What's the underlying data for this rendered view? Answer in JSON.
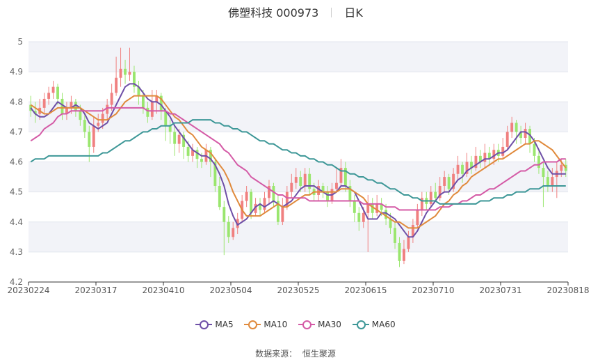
{
  "title": {
    "name": "佛塑科技 000973",
    "period": "日K"
  },
  "source_label": "数据来源：",
  "source_value": "恒生聚源",
  "colors": {
    "up": "#f08080",
    "down": "#9ae66e",
    "MA5": "#6e4fa7",
    "MA10": "#e08a3c",
    "MA30": "#d45aa6",
    "MA60": "#3d9797",
    "grid": "#e3e6ee",
    "band": "#f2f3f8"
  },
  "chart_data": {
    "type": "candlestick",
    "ylim": [
      4.2,
      5.0
    ],
    "y_ticks": [
      "4.2",
      "4.3",
      "4.4",
      "4.5",
      "4.6",
      "4.7",
      "4.8",
      "4.9",
      "5"
    ],
    "x_tick_labels": [
      "20230224",
      "20230317",
      "20230410",
      "20230504",
      "20230525",
      "20230615",
      "20230710",
      "20230731",
      "20230818"
    ],
    "legend": [
      "MA5",
      "MA10",
      "MA30",
      "MA60"
    ],
    "candles": [
      [
        4.79,
        4.77,
        4.82,
        4.75
      ],
      [
        4.77,
        4.76,
        4.8,
        4.73
      ],
      [
        4.76,
        4.78,
        4.81,
        4.74
      ],
      [
        4.78,
        4.81,
        4.83,
        4.76
      ],
      [
        4.81,
        4.83,
        4.85,
        4.79
      ],
      [
        4.83,
        4.85,
        4.87,
        4.81
      ],
      [
        4.85,
        4.81,
        4.86,
        4.79
      ],
      [
        4.81,
        4.76,
        4.83,
        4.74
      ],
      [
        4.76,
        4.78,
        4.8,
        4.74
      ],
      [
        4.78,
        4.8,
        4.82,
        4.76
      ],
      [
        4.8,
        4.77,
        4.81,
        4.75
      ],
      [
        4.77,
        4.74,
        4.79,
        4.72
      ],
      [
        4.74,
        4.7,
        4.76,
        4.68
      ],
      [
        4.7,
        4.65,
        4.72,
        4.6
      ],
      [
        4.65,
        4.72,
        4.75,
        4.63
      ],
      [
        4.72,
        4.73,
        4.76,
        4.7
      ],
      [
        4.73,
        4.76,
        4.78,
        4.71
      ],
      [
        4.76,
        4.79,
        4.81,
        4.74
      ],
      [
        4.79,
        4.83,
        4.86,
        4.77
      ],
      [
        4.83,
        4.88,
        4.95,
        4.82
      ],
      [
        4.88,
        4.91,
        4.98,
        4.85
      ],
      [
        4.91,
        4.89,
        4.94,
        4.86
      ],
      [
        4.89,
        4.9,
        4.98,
        4.87
      ],
      [
        4.9,
        4.85,
        4.92,
        4.83
      ],
      [
        4.85,
        4.82,
        4.87,
        4.79
      ],
      [
        4.82,
        4.78,
        4.84,
        4.76
      ],
      [
        4.78,
        4.75,
        4.8,
        4.73
      ],
      [
        4.75,
        4.8,
        4.84,
        4.74
      ],
      [
        4.8,
        4.82,
        4.84,
        4.76
      ],
      [
        4.82,
        4.77,
        4.83,
        4.74
      ],
      [
        4.77,
        4.72,
        4.78,
        4.67
      ],
      [
        4.72,
        4.7,
        4.74,
        4.66
      ],
      [
        4.7,
        4.66,
        4.72,
        4.62
      ],
      [
        4.66,
        4.69,
        4.71,
        4.63
      ],
      [
        4.69,
        4.65,
        4.7,
        4.61
      ],
      [
        4.65,
        4.62,
        4.67,
        4.6
      ],
      [
        4.62,
        4.64,
        4.66,
        4.6
      ],
      [
        4.64,
        4.61,
        4.65,
        4.58
      ],
      [
        4.61,
        4.6,
        4.63,
        4.58
      ],
      [
        4.6,
        4.64,
        4.66,
        4.59
      ],
      [
        4.64,
        4.6,
        4.65,
        4.55
      ],
      [
        4.6,
        4.52,
        4.61,
        4.5
      ],
      [
        4.52,
        4.45,
        4.55,
        4.44
      ],
      [
        4.45,
        4.4,
        4.47,
        4.29
      ],
      [
        4.4,
        4.35,
        4.42,
        4.33
      ],
      [
        4.35,
        4.38,
        4.4,
        4.34
      ],
      [
        4.38,
        4.41,
        4.43,
        4.36
      ],
      [
        4.41,
        4.47,
        4.49,
        4.4
      ],
      [
        4.47,
        4.5,
        4.52,
        4.45
      ],
      [
        4.5,
        4.43,
        4.51,
        4.41
      ],
      [
        4.43,
        4.46,
        4.48,
        4.42
      ],
      [
        4.46,
        4.44,
        4.48,
        4.42
      ],
      [
        4.44,
        4.48,
        4.5,
        4.43
      ],
      [
        4.48,
        4.52,
        4.54,
        4.46
      ],
      [
        4.52,
        4.47,
        4.53,
        4.45
      ],
      [
        4.47,
        4.4,
        4.49,
        4.39
      ],
      [
        4.4,
        4.45,
        4.48,
        4.39
      ],
      [
        4.45,
        4.5,
        4.52,
        4.44
      ],
      [
        4.5,
        4.53,
        4.56,
        4.48
      ],
      [
        4.53,
        4.55,
        4.58,
        4.51
      ],
      [
        4.55,
        4.52,
        4.57,
        4.5
      ],
      [
        4.52,
        4.56,
        4.58,
        4.5
      ],
      [
        4.56,
        4.51,
        4.58,
        4.49
      ],
      [
        4.51,
        4.49,
        4.53,
        4.47
      ],
      [
        4.49,
        4.52,
        4.54,
        4.47
      ],
      [
        4.52,
        4.5,
        4.53,
        4.48
      ],
      [
        4.5,
        4.47,
        4.52,
        4.45
      ],
      [
        4.47,
        4.51,
        4.53,
        4.46
      ],
      [
        4.51,
        4.53,
        4.58,
        4.5
      ],
      [
        4.53,
        4.58,
        4.61,
        4.52
      ],
      [
        4.58,
        4.52,
        4.6,
        4.5
      ],
      [
        4.52,
        4.47,
        4.54,
        4.45
      ],
      [
        4.47,
        4.43,
        4.49,
        4.4
      ],
      [
        4.43,
        4.4,
        4.45,
        4.37
      ],
      [
        4.4,
        4.43,
        4.45,
        4.38
      ],
      [
        4.43,
        4.46,
        4.49,
        4.3
      ],
      [
        4.46,
        4.43,
        4.48,
        4.41
      ],
      [
        4.43,
        4.46,
        4.49,
        4.42
      ],
      [
        4.46,
        4.44,
        4.48,
        4.42
      ],
      [
        4.44,
        4.41,
        4.46,
        4.39
      ],
      [
        4.41,
        4.38,
        4.43,
        4.36
      ],
      [
        4.38,
        4.33,
        4.4,
        4.31
      ],
      [
        4.33,
        4.27,
        4.35,
        4.25
      ],
      [
        4.27,
        4.31,
        4.34,
        4.26
      ],
      [
        4.31,
        4.35,
        4.37,
        4.3
      ],
      [
        4.35,
        4.39,
        4.41,
        4.33
      ],
      [
        4.39,
        4.44,
        4.46,
        4.38
      ],
      [
        4.44,
        4.48,
        4.5,
        4.42
      ],
      [
        4.48,
        4.46,
        4.5,
        4.44
      ],
      [
        4.46,
        4.5,
        4.52,
        4.45
      ],
      [
        4.5,
        4.48,
        4.53,
        4.47
      ],
      [
        4.48,
        4.52,
        4.55,
        4.47
      ],
      [
        4.52,
        4.55,
        4.57,
        4.5
      ],
      [
        4.55,
        4.51,
        4.56,
        4.49
      ],
      [
        4.51,
        4.56,
        4.58,
        4.5
      ],
      [
        4.56,
        4.59,
        4.62,
        4.54
      ],
      [
        4.59,
        4.56,
        4.6,
        4.53
      ],
      [
        4.56,
        4.6,
        4.63,
        4.55
      ],
      [
        4.6,
        4.58,
        4.62,
        4.56
      ],
      [
        4.58,
        4.62,
        4.65,
        4.57
      ],
      [
        4.62,
        4.6,
        4.64,
        4.58
      ],
      [
        4.6,
        4.63,
        4.66,
        4.58
      ],
      [
        4.63,
        4.61,
        4.65,
        4.59
      ],
      [
        4.61,
        4.64,
        4.66,
        4.59
      ],
      [
        4.64,
        4.62,
        4.66,
        4.6
      ],
      [
        4.62,
        4.65,
        4.68,
        4.61
      ],
      [
        4.65,
        4.7,
        4.72,
        4.64
      ],
      [
        4.7,
        4.73,
        4.75,
        4.68
      ],
      [
        4.73,
        4.7,
        4.74,
        4.66
      ],
      [
        4.7,
        4.68,
        4.72,
        4.66
      ],
      [
        4.68,
        4.71,
        4.73,
        4.66
      ],
      [
        4.71,
        4.66,
        4.72,
        4.63
      ],
      [
        4.66,
        4.62,
        4.68,
        4.6
      ],
      [
        4.62,
        4.58,
        4.64,
        4.56
      ],
      [
        4.58,
        4.55,
        4.6,
        4.45
      ],
      [
        4.55,
        4.52,
        4.57,
        4.5
      ],
      [
        4.52,
        4.55,
        4.58,
        4.5
      ],
      [
        4.55,
        4.57,
        4.6,
        4.48
      ],
      [
        4.57,
        4.59,
        4.61,
        4.55
      ],
      [
        4.59,
        4.57,
        4.61,
        4.55
      ]
    ],
    "series": [
      {
        "name": "MA5",
        "values": [
          4.78,
          4.76,
          4.75,
          4.75,
          4.76,
          4.78,
          4.8,
          4.79,
          4.78,
          4.78,
          4.79,
          4.78,
          4.76,
          4.73,
          4.72,
          4.71,
          4.72,
          4.73,
          4.76,
          4.79,
          4.82,
          4.85,
          4.86,
          4.86,
          4.85,
          4.83,
          4.81,
          4.8,
          4.8,
          4.79,
          4.77,
          4.75,
          4.72,
          4.7,
          4.68,
          4.66,
          4.64,
          4.63,
          4.62,
          4.62,
          4.61,
          4.59,
          4.56,
          4.52,
          4.46,
          4.42,
          4.39,
          4.4,
          4.41,
          4.43,
          4.45,
          4.46,
          4.45,
          4.46,
          4.47,
          4.46,
          4.45,
          4.46,
          4.47,
          4.49,
          4.51,
          4.52,
          4.52,
          4.52,
          4.51,
          4.5,
          4.49,
          4.49,
          4.5,
          4.52,
          4.52,
          4.51,
          4.5,
          4.47,
          4.44,
          4.41,
          4.41,
          4.41,
          4.43,
          4.43,
          4.42,
          4.41,
          4.39,
          4.37,
          4.35,
          4.35,
          4.37,
          4.4,
          4.43,
          4.45,
          4.47,
          4.49,
          4.5,
          4.5,
          4.52,
          4.54,
          4.55,
          4.57,
          4.58,
          4.59,
          4.6,
          4.61,
          4.61,
          4.62,
          4.63,
          4.63,
          4.64,
          4.66,
          4.68,
          4.7,
          4.7,
          4.69,
          4.67,
          4.64,
          4.61,
          4.58,
          4.56,
          4.56,
          4.56,
          4.56
        ]
      },
      {
        "name": "MA10",
        "values": [
          4.79,
          4.78,
          4.77,
          4.76,
          4.76,
          4.77,
          4.78,
          4.78,
          4.78,
          4.78,
          4.78,
          4.78,
          4.77,
          4.76,
          4.75,
          4.74,
          4.74,
          4.74,
          4.75,
          4.76,
          4.78,
          4.8,
          4.81,
          4.82,
          4.82,
          4.82,
          4.82,
          4.82,
          4.82,
          4.81,
          4.79,
          4.77,
          4.75,
          4.74,
          4.72,
          4.7,
          4.69,
          4.67,
          4.65,
          4.64,
          4.63,
          4.61,
          4.59,
          4.57,
          4.54,
          4.5,
          4.47,
          4.44,
          4.42,
          4.42,
          4.42,
          4.42,
          4.43,
          4.44,
          4.45,
          4.46,
          4.45,
          4.45,
          4.46,
          4.47,
          4.48,
          4.49,
          4.49,
          4.5,
          4.5,
          4.5,
          4.5,
          4.5,
          4.5,
          4.51,
          4.51,
          4.51,
          4.5,
          4.49,
          4.48,
          4.46,
          4.45,
          4.44,
          4.43,
          4.42,
          4.41,
          4.4,
          4.4,
          4.39,
          4.38,
          4.38,
          4.38,
          4.39,
          4.4,
          4.41,
          4.42,
          4.44,
          4.46,
          4.47,
          4.49,
          4.5,
          4.52,
          4.53,
          4.55,
          4.56,
          4.57,
          4.58,
          4.59,
          4.6,
          4.61,
          4.61,
          4.62,
          4.63,
          4.64,
          4.65,
          4.66,
          4.66,
          4.67,
          4.67,
          4.66,
          4.65,
          4.64,
          4.62,
          4.6,
          4.58
        ]
      },
      {
        "name": "MA30",
        "values": [
          4.67,
          4.68,
          4.69,
          4.71,
          4.72,
          4.73,
          4.75,
          4.76,
          4.76,
          4.77,
          4.77,
          4.77,
          4.77,
          4.77,
          4.77,
          4.77,
          4.77,
          4.78,
          4.78,
          4.78,
          4.78,
          4.78,
          4.78,
          4.78,
          4.78,
          4.78,
          4.77,
          4.77,
          4.77,
          4.77,
          4.77,
          4.76,
          4.76,
          4.75,
          4.74,
          4.73,
          4.72,
          4.71,
          4.7,
          4.69,
          4.68,
          4.67,
          4.66,
          4.64,
          4.63,
          4.61,
          4.59,
          4.58,
          4.57,
          4.55,
          4.54,
          4.53,
          4.52,
          4.51,
          4.5,
          4.49,
          4.49,
          4.48,
          4.48,
          4.48,
          4.48,
          4.48,
          4.47,
          4.47,
          4.47,
          4.47,
          4.47,
          4.47,
          4.47,
          4.47,
          4.47,
          4.47,
          4.47,
          4.47,
          4.46,
          4.46,
          4.46,
          4.46,
          4.46,
          4.45,
          4.45,
          4.45,
          4.44,
          4.44,
          4.44,
          4.44,
          4.44,
          4.44,
          4.44,
          4.44,
          4.44,
          4.45,
          4.45,
          4.45,
          4.46,
          4.46,
          4.47,
          4.47,
          4.48,
          4.49,
          4.49,
          4.5,
          4.51,
          4.51,
          4.52,
          4.53,
          4.54,
          4.55,
          4.56,
          4.57,
          4.57,
          4.58,
          4.59,
          4.59,
          4.6,
          4.6,
          4.6,
          4.6,
          4.61,
          4.61
        ]
      },
      {
        "name": "MA60",
        "values": [
          4.6,
          4.61,
          4.61,
          4.61,
          4.62,
          4.62,
          4.62,
          4.62,
          4.62,
          4.62,
          4.62,
          4.62,
          4.62,
          4.62,
          4.62,
          4.62,
          4.63,
          4.63,
          4.64,
          4.65,
          4.66,
          4.67,
          4.67,
          4.68,
          4.69,
          4.7,
          4.7,
          4.71,
          4.71,
          4.72,
          4.72,
          4.72,
          4.73,
          4.73,
          4.73,
          4.73,
          4.74,
          4.74,
          4.74,
          4.74,
          4.74,
          4.73,
          4.73,
          4.72,
          4.72,
          4.71,
          4.71,
          4.7,
          4.7,
          4.69,
          4.68,
          4.67,
          4.67,
          4.66,
          4.66,
          4.65,
          4.64,
          4.64,
          4.63,
          4.63,
          4.62,
          4.62,
          4.61,
          4.61,
          4.6,
          4.6,
          4.59,
          4.59,
          4.58,
          4.57,
          4.57,
          4.56,
          4.56,
          4.55,
          4.55,
          4.54,
          4.54,
          4.53,
          4.53,
          4.52,
          4.51,
          4.51,
          4.5,
          4.49,
          4.49,
          4.48,
          4.48,
          4.47,
          4.47,
          4.47,
          4.47,
          4.46,
          4.46,
          4.46,
          4.46,
          4.46,
          4.46,
          4.46,
          4.46,
          4.46,
          4.47,
          4.47,
          4.47,
          4.48,
          4.48,
          4.48,
          4.49,
          4.49,
          4.5,
          4.5,
          4.5,
          4.51,
          4.51,
          4.51,
          4.52,
          4.52,
          4.52,
          4.52,
          4.52,
          4.52
        ]
      }
    ]
  }
}
